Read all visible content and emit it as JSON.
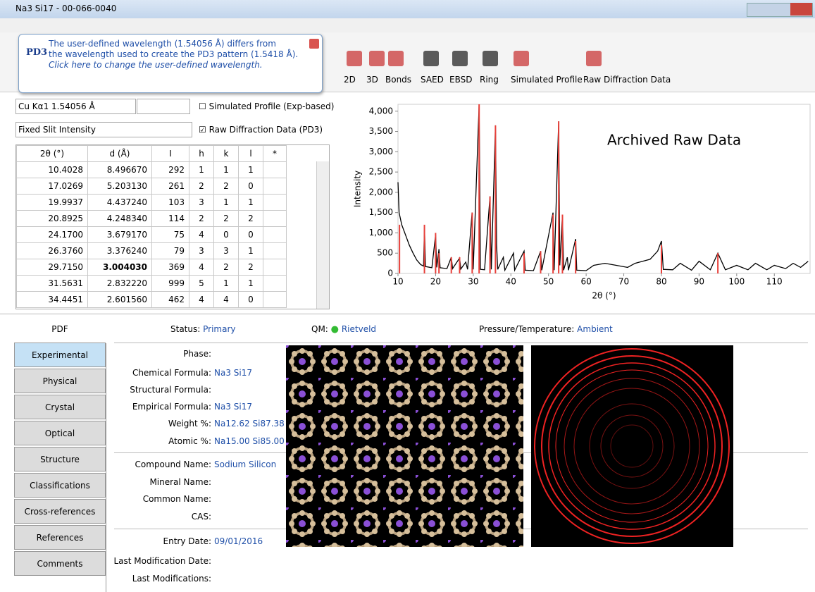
{
  "window": {
    "title": "Na3 Si17 - 00-066-0040"
  },
  "tooltip": {
    "line1": "The user-defined wavelength (1.54056 Å) differs from",
    "line2": "the wavelength used to create the PD3 pattern (1.5418 Å).",
    "link": "Click here to change the user-defined wavelength."
  },
  "toolbar": [
    "2D",
    "3D",
    "Bonds",
    "SAED",
    "EBSD",
    "Ring",
    "Simulated Profile",
    "Raw Diffraction Data"
  ],
  "controls": {
    "wavelength": "Cu Kα1 1.54056 Å",
    "intensity": "Fixed Slit Intensity",
    "simulated": "Simulated Profile (Exp-based)",
    "raw": "Raw Diffraction Data (PD3)"
  },
  "table": {
    "columns": [
      "2θ (°)",
      "d (Å)",
      "I",
      "h",
      "k",
      "l",
      "*"
    ],
    "rows": [
      [
        "10.4028",
        "8.496670",
        "292",
        "1",
        "1",
        "1"
      ],
      [
        "17.0269",
        "5.203130",
        "261",
        "2",
        "2",
        "0"
      ],
      [
        "19.9937",
        "4.437240",
        "103",
        "3",
        "1",
        "1"
      ],
      [
        "20.8925",
        "4.248340",
        "114",
        "2",
        "2",
        "2"
      ],
      [
        "24.1700",
        "3.679170",
        "75",
        "4",
        "0",
        "0"
      ],
      [
        "26.3760",
        "3.376240",
        "79",
        "3",
        "3",
        "1"
      ],
      [
        "29.7150",
        "3.004030",
        "369",
        "4",
        "2",
        "2"
      ],
      [
        "31.5631",
        "2.832220",
        "999",
        "5",
        "1",
        "1"
      ],
      [
        "34.4451",
        "2.601560",
        "462",
        "4",
        "4",
        "0"
      ]
    ]
  },
  "chart_data": {
    "type": "line",
    "annotation": "Archived Raw Data",
    "y_label": "Intensity",
    "x_label": "2θ (°)",
    "xlim": [
      10,
      119.5
    ],
    "ylim": [
      0,
      4170
    ],
    "xticks": [
      10,
      20,
      30,
      40,
      50,
      60,
      70,
      80,
      90,
      100,
      110
    ],
    "yticks": [
      0,
      500,
      {
        "value": 1000,
        "label": "1,000"
      },
      {
        "value": 1500,
        "label": "1,500"
      },
      {
        "value": 2000,
        "label": "2,000"
      },
      {
        "value": 2500,
        "label": "2,500"
      },
      {
        "value": 3000,
        "label": "3,000"
      },
      {
        "value": 3500,
        "label": "3,500"
      },
      {
        "value": 4000,
        "label": "4,000"
      }
    ],
    "series": [
      {
        "color": "#000000",
        "x": [
          10,
          10.3,
          11,
          12,
          13,
          14,
          15,
          16,
          16.8,
          17.03,
          17.3,
          19,
          19.99,
          20.3,
          20.89,
          21.2,
          23,
          24.17,
          24.5,
          26.38,
          26.7,
          28,
          28.5,
          29.7,
          30,
          31.56,
          31.9,
          33,
          34.45,
          34.8,
          35.9,
          36.2,
          36.5,
          38,
          38.4,
          40.7,
          41,
          43.5,
          43.8,
          46,
          47.9,
          48.2,
          51.2,
          51.5,
          52.7,
          53,
          53.7,
          54,
          55,
          55.3,
          57.2,
          57.5,
          60,
          62,
          65,
          68,
          71,
          73,
          75,
          77,
          79,
          80,
          80.5,
          83,
          85,
          88,
          90,
          93,
          95,
          97,
          100,
          103,
          105,
          108,
          110,
          113,
          115,
          117,
          119
        ],
        "values": [
          2250,
          1500,
          1200,
          950,
          700,
          500,
          330,
          220,
          180,
          1150,
          170,
          140,
          950,
          150,
          600,
          140,
          120,
          400,
          120,
          380,
          110,
          280,
          100,
          1500,
          100,
          4170,
          100,
          90,
          1900,
          100,
          3650,
          700,
          100,
          400,
          80,
          500,
          80,
          550,
          80,
          70,
          550,
          80,
          1500,
          80,
          3750,
          200,
          1450,
          80,
          400,
          80,
          850,
          80,
          70,
          200,
          250,
          200,
          150,
          250,
          300,
          350,
          550,
          800,
          100,
          90,
          250,
          80,
          300,
          90,
          500,
          90,
          200,
          90,
          250,
          90,
          200,
          120,
          250,
          150,
          300
        ]
      },
      {
        "color": "#e8403a",
        "style": "stick",
        "x": [
          10.4,
          17.03,
          19.99,
          20.89,
          24.17,
          26.38,
          29.72,
          31.56,
          34.45,
          35.9,
          43.5,
          47.9,
          51.2,
          52.7,
          53.7,
          57.2,
          80.0,
          95.0
        ],
        "values": [
          1200,
          1200,
          1000,
          500,
          400,
          400,
          1500,
          4170,
          1900,
          3650,
          500,
          550,
          1450,
          3750,
          1450,
          800,
          700,
          500
        ]
      }
    ]
  },
  "tabs": [
    "PDF",
    "Experimental",
    "Physical",
    "Crystal",
    "Optical",
    "Structure",
    "Classifications",
    "Cross-references",
    "References",
    "Comments"
  ],
  "details": {
    "status": {
      "label": "Status:",
      "value": "Primary"
    },
    "qm": {
      "label": "QM:",
      "value": "Rietveld"
    },
    "pressure": {
      "label": "Pressure/Temperature:",
      "value": "Ambient"
    },
    "groups": [
      [
        {
          "label": "Phase:"
        },
        {
          "label": "Chemical Formula:",
          "value": "Na3 Si17"
        },
        {
          "label": "Structural Formula:"
        },
        {
          "label": "Empirical Formula:",
          "value": "Na3 Si17"
        },
        {
          "label": "Weight %:",
          "value": "Na12.62 Si87.38"
        },
        {
          "label": "Atomic %:",
          "value": "Na15.00 Si85.00"
        }
      ],
      [
        {
          "label": "Compound Name:",
          "value": "Sodium Silicon"
        },
        {
          "label": "Mineral Name:"
        },
        {
          "label": "Common Name:"
        },
        {
          "label": "CAS:"
        }
      ],
      [
        {
          "label": "Entry Date:",
          "value": "09/01/2016"
        },
        {
          "label": "Last Modification Date:"
        },
        {
          "label": "Last Modifications:"
        }
      ]
    ]
  }
}
